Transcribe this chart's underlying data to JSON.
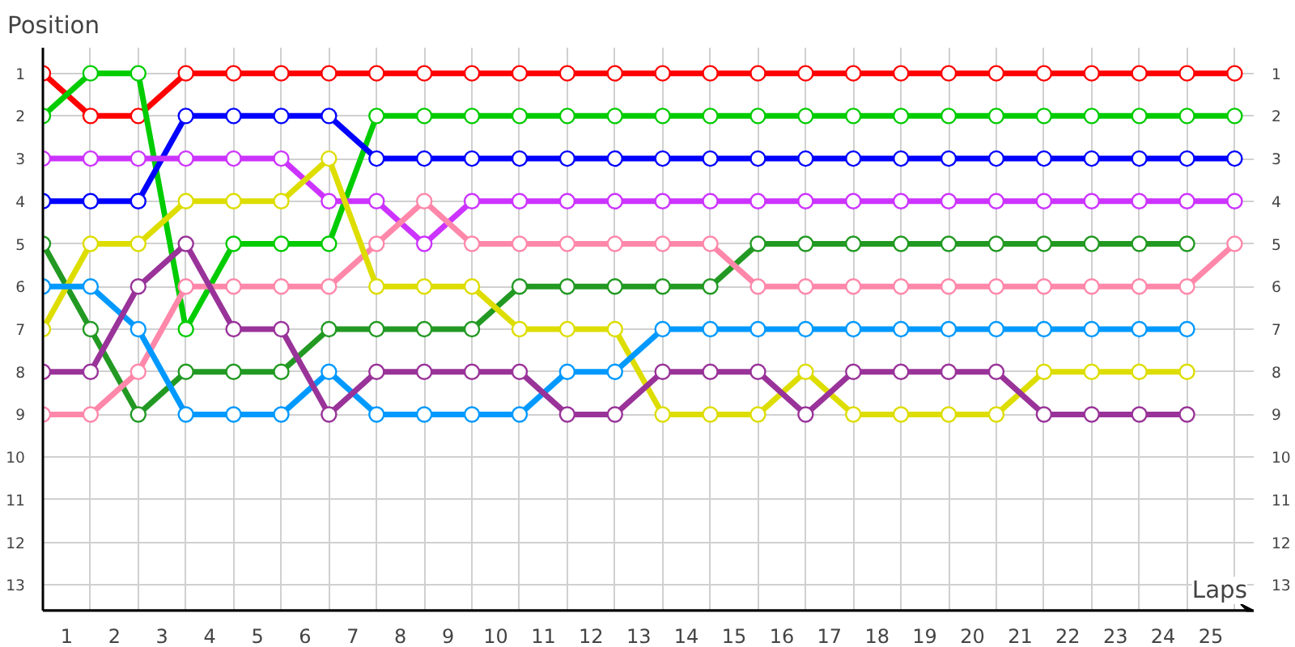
{
  "chart_data": {
    "type": "line",
    "xlabel": "Laps",
    "ylabel": "Position",
    "x": [
      0,
      1,
      2,
      3,
      4,
      5,
      6,
      7,
      8,
      9,
      10,
      11,
      12,
      13,
      14,
      15,
      16,
      17,
      18,
      19,
      20,
      21,
      22,
      23,
      24,
      25
    ],
    "xlim": [
      0,
      25.4
    ],
    "xticks": [
      {
        "value": 0,
        "label": null
      },
      {
        "value": 1,
        "label": null
      },
      {
        "value": 2,
        "label": null
      },
      {
        "value": 3,
        "label": null
      },
      {
        "value": 4,
        "label": null
      },
      {
        "value": 5,
        "label": null
      },
      {
        "value": 6,
        "label": null
      },
      {
        "value": 7,
        "label": null
      },
      {
        "value": 8,
        "label": null
      },
      {
        "value": 9,
        "label": null
      },
      {
        "value": 10,
        "label": null
      },
      {
        "value": 11,
        "label": null
      },
      {
        "value": 12,
        "label": null
      },
      {
        "value": 13,
        "label": null
      },
      {
        "value": 14,
        "label": null
      },
      {
        "value": 15,
        "label": null
      },
      {
        "value": 16,
        "label": null
      },
      {
        "value": 17,
        "label": null
      },
      {
        "value": 18,
        "label": null
      },
      {
        "value": 19,
        "label": null
      },
      {
        "value": 20,
        "label": null
      },
      {
        "value": 21,
        "label": null
      },
      {
        "value": 22,
        "label": null
      },
      {
        "value": 23,
        "label": null
      },
      {
        "value": 24,
        "label": null
      },
      {
        "value": 25,
        "label": null
      },
      {
        "value": 0.5,
        "label": "1"
      },
      {
        "value": 1.5,
        "label": "2"
      },
      {
        "value": 2.5,
        "label": "3"
      },
      {
        "value": 3.5,
        "label": "4"
      },
      {
        "value": 4.5,
        "label": "5"
      },
      {
        "value": 5.5,
        "label": "6"
      },
      {
        "value": 6.5,
        "label": "7"
      },
      {
        "value": 7.5,
        "label": "8"
      },
      {
        "value": 8.5,
        "label": "9"
      },
      {
        "value": 9.5,
        "label": "10"
      },
      {
        "value": 10.5,
        "label": "11"
      },
      {
        "value": 11.5,
        "label": "12"
      },
      {
        "value": 12.5,
        "label": "13"
      },
      {
        "value": 13.5,
        "label": "14"
      },
      {
        "value": 14.5,
        "label": "15"
      },
      {
        "value": 15.5,
        "label": "16"
      },
      {
        "value": 16.5,
        "label": "17"
      },
      {
        "value": 17.5,
        "label": "18"
      },
      {
        "value": 18.5,
        "label": "19"
      },
      {
        "value": 19.5,
        "label": "20"
      },
      {
        "value": 20.5,
        "label": "21"
      },
      {
        "value": 21.5,
        "label": "22"
      },
      {
        "value": 22.5,
        "label": "23"
      },
      {
        "value": 23.5,
        "label": "24"
      },
      {
        "value": 24.5,
        "label": "25"
      }
    ],
    "ylim": [
      13.6,
      0.4
    ],
    "yticks": [
      1,
      2,
      3,
      4,
      5,
      6,
      7,
      8,
      9,
      10,
      11,
      12,
      13
    ],
    "y2lim": [
      13.6,
      0.4
    ],
    "y2ticks": [
      1,
      2,
      3,
      4,
      5,
      6,
      7,
      8,
      9,
      10,
      11,
      12,
      13
    ],
    "grid": true,
    "marker": "circle",
    "line_style": "solid",
    "series": [
      {
        "color": "#ff0000",
        "values": [
          1,
          2,
          2,
          1,
          1,
          1,
          1,
          1,
          1,
          1,
          1,
          1,
          1,
          1,
          1,
          1,
          1,
          1,
          1,
          1,
          1,
          1,
          1,
          1,
          1,
          1
        ]
      },
      {
        "color": "#00cc00",
        "values": [
          2,
          1,
          1,
          7,
          5,
          5,
          5,
          2,
          2,
          2,
          2,
          2,
          2,
          2,
          2,
          2,
          2,
          2,
          2,
          2,
          2,
          2,
          2,
          2,
          2,
          2
        ]
      },
      {
        "color": "#0000ff",
        "values": [
          4,
          4,
          4,
          2,
          2,
          2,
          2,
          3,
          3,
          3,
          3,
          3,
          3,
          3,
          3,
          3,
          3,
          3,
          3,
          3,
          3,
          3,
          3,
          3,
          3,
          3
        ]
      },
      {
        "color": "#cc33ff",
        "values": [
          3,
          3,
          3,
          3,
          3,
          3,
          4,
          4,
          5,
          4,
          4,
          4,
          4,
          4,
          4,
          4,
          4,
          4,
          4,
          4,
          4,
          4,
          4,
          4,
          4,
          4
        ]
      },
      {
        "color": "#229922",
        "values": [
          5,
          7,
          9,
          8,
          8,
          8,
          7,
          7,
          7,
          7,
          6,
          6,
          6,
          6,
          6,
          5,
          5,
          5,
          5,
          5,
          5,
          5,
          5,
          5,
          5,
          null
        ]
      },
      {
        "color": "#ff88aa",
        "values": [
          9,
          9,
          8,
          6,
          6,
          6,
          6,
          5,
          4,
          5,
          5,
          5,
          5,
          5,
          5,
          6,
          6,
          6,
          6,
          6,
          6,
          6,
          6,
          6,
          6,
          5
        ]
      },
      {
        "color": "#dddd00",
        "values": [
          7,
          5,
          5,
          4,
          4,
          4,
          3,
          6,
          6,
          6,
          7,
          7,
          7,
          9,
          9,
          9,
          8,
          9,
          9,
          9,
          9,
          8,
          8,
          8,
          8,
          null
        ]
      },
      {
        "color": "#0099ff",
        "values": [
          6,
          6,
          7,
          9,
          9,
          9,
          8,
          9,
          9,
          9,
          9,
          8,
          8,
          7,
          7,
          7,
          7,
          7,
          7,
          7,
          7,
          7,
          7,
          7,
          7,
          null
        ]
      },
      {
        "color": "#993399",
        "values": [
          8,
          8,
          6,
          5,
          7,
          7,
          9,
          8,
          8,
          8,
          8,
          9,
          9,
          8,
          8,
          8,
          9,
          8,
          8,
          8,
          8,
          9,
          9,
          9,
          9,
          null
        ]
      }
    ]
  }
}
